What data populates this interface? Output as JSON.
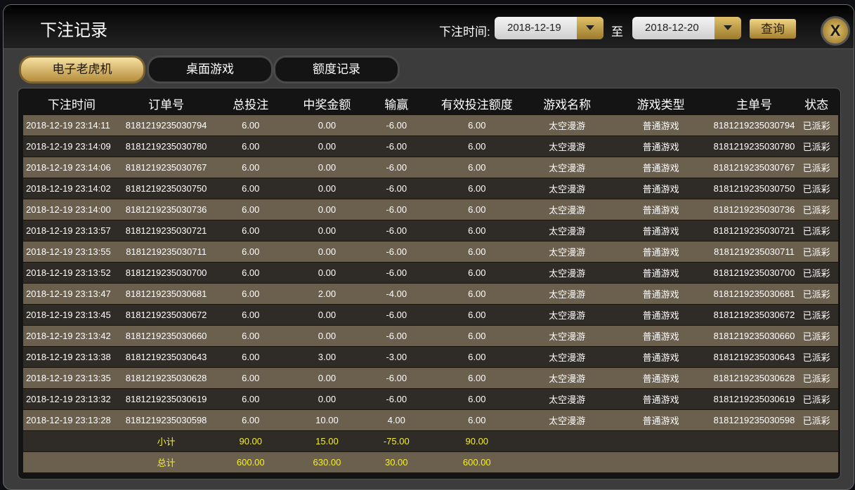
{
  "header": {
    "title": "下注记录",
    "query_label": "下注时间:",
    "date_from": "2018-12-19",
    "to_label": "至",
    "date_to": "2018-12-20",
    "query_button": "查询",
    "close_label": "X"
  },
  "tabs": [
    {
      "label": "电子老虎机",
      "active": true
    },
    {
      "label": "桌面游戏",
      "active": false
    },
    {
      "label": "额度记录",
      "active": false
    }
  ],
  "table": {
    "columns": [
      "下注时间",
      "订单号",
      "总投注",
      "中奖金额",
      "输赢",
      "有效投注额度",
      "游戏名称",
      "游戏类型",
      "主单号",
      "状态"
    ],
    "rows": [
      [
        "2018-12-19 23:14:11",
        "8181219235030794",
        "6.00",
        "0.00",
        "-6.00",
        "6.00",
        "太空漫游",
        "普通游戏",
        "8181219235030794",
        "已派彩"
      ],
      [
        "2018-12-19 23:14:09",
        "8181219235030780",
        "6.00",
        "0.00",
        "-6.00",
        "6.00",
        "太空漫游",
        "普通游戏",
        "8181219235030780",
        "已派彩"
      ],
      [
        "2018-12-19 23:14:06",
        "8181219235030767",
        "6.00",
        "0.00",
        "-6.00",
        "6.00",
        "太空漫游",
        "普通游戏",
        "8181219235030767",
        "已派彩"
      ],
      [
        "2018-12-19 23:14:02",
        "8181219235030750",
        "6.00",
        "0.00",
        "-6.00",
        "6.00",
        "太空漫游",
        "普通游戏",
        "8181219235030750",
        "已派彩"
      ],
      [
        "2018-12-19 23:14:00",
        "8181219235030736",
        "6.00",
        "0.00",
        "-6.00",
        "6.00",
        "太空漫游",
        "普通游戏",
        "8181219235030736",
        "已派彩"
      ],
      [
        "2018-12-19 23:13:57",
        "8181219235030721",
        "6.00",
        "0.00",
        "-6.00",
        "6.00",
        "太空漫游",
        "普通游戏",
        "8181219235030721",
        "已派彩"
      ],
      [
        "2018-12-19 23:13:55",
        "8181219235030711",
        "6.00",
        "0.00",
        "-6.00",
        "6.00",
        "太空漫游",
        "普通游戏",
        "8181219235030711",
        "已派彩"
      ],
      [
        "2018-12-19 23:13:52",
        "8181219235030700",
        "6.00",
        "0.00",
        "-6.00",
        "6.00",
        "太空漫游",
        "普通游戏",
        "8181219235030700",
        "已派彩"
      ],
      [
        "2018-12-19 23:13:47",
        "8181219235030681",
        "6.00",
        "2.00",
        "-4.00",
        "6.00",
        "太空漫游",
        "普通游戏",
        "8181219235030681",
        "已派彩"
      ],
      [
        "2018-12-19 23:13:45",
        "8181219235030672",
        "6.00",
        "0.00",
        "-6.00",
        "6.00",
        "太空漫游",
        "普通游戏",
        "8181219235030672",
        "已派彩"
      ],
      [
        "2018-12-19 23:13:42",
        "8181219235030660",
        "6.00",
        "0.00",
        "-6.00",
        "6.00",
        "太空漫游",
        "普通游戏",
        "8181219235030660",
        "已派彩"
      ],
      [
        "2018-12-19 23:13:38",
        "8181219235030643",
        "6.00",
        "3.00",
        "-3.00",
        "6.00",
        "太空漫游",
        "普通游戏",
        "8181219235030643",
        "已派彩"
      ],
      [
        "2018-12-19 23:13:35",
        "8181219235030628",
        "6.00",
        "0.00",
        "-6.00",
        "6.00",
        "太空漫游",
        "普通游戏",
        "8181219235030628",
        "已派彩"
      ],
      [
        "2018-12-19 23:13:32",
        "8181219235030619",
        "6.00",
        "0.00",
        "-6.00",
        "6.00",
        "太空漫游",
        "普通游戏",
        "8181219235030619",
        "已派彩"
      ],
      [
        "2018-12-19 23:13:28",
        "8181219235030598",
        "6.00",
        "10.00",
        "4.00",
        "6.00",
        "太空漫游",
        "普通游戏",
        "8181219235030598",
        "已派彩"
      ]
    ],
    "subtotal": {
      "label": "小计",
      "total_bet": "90.00",
      "win": "15.00",
      "profit": "-75.00",
      "valid_bet": "90.00"
    },
    "total": {
      "label": "总计",
      "total_bet": "600.00",
      "win": "630.00",
      "profit": "30.00",
      "valid_bet": "600.00"
    }
  },
  "colors": {
    "accent_gold": "#c9a24a",
    "row_odd": "#6b5f4d",
    "row_even": "#2f2c28",
    "summary_text": "#f4ee2a"
  }
}
